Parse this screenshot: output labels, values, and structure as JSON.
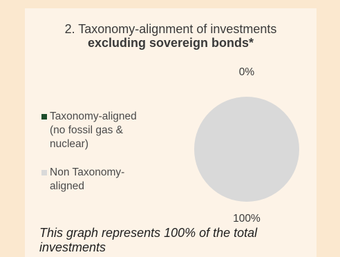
{
  "chart_data": {
    "type": "pie",
    "title_line1": "2. Taxonomy-alignment of investments",
    "title_line2": "excluding sovereign bonds*",
    "series": [
      {
        "name": "Taxonomy-aligned (no fossil gas & nuclear)",
        "value": 0,
        "label": "0%",
        "color": "#1e4d2b"
      },
      {
        "name": "Non Taxonomy-aligned",
        "value": 100,
        "label": "100%",
        "color": "#d9d9d9"
      }
    ],
    "legend": {
      "placement": "left",
      "items": [
        {
          "lines": [
            "Taxonomy-aligned",
            "(no fossil gas &",
            "nuclear)"
          ],
          "color": "#1e4d2b"
        },
        {
          "lines": [
            "Non Taxonomy-",
            "aligned"
          ],
          "color": "#d9d9d9"
        }
      ]
    }
  },
  "footnote": {
    "line1": "This graph represents 100% of the total",
    "line2": "investments"
  },
  "colors": {
    "background": "#fbe8cf",
    "panel": "#fdf3e7"
  }
}
